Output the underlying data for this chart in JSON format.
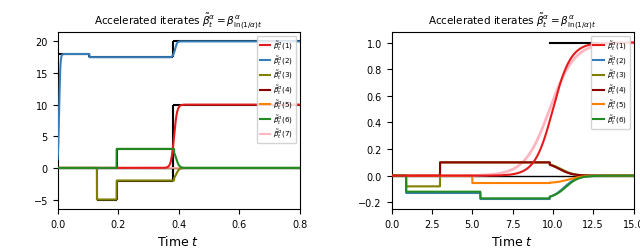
{
  "title": "Accelerated iterates $\\tilde{\\beta}^\\alpha_t = \\beta^\\alpha_{\\ln(1/\\alpha)t}$",
  "xlabel": "Time $t$",
  "left": {
    "xlim": [
      0.0,
      0.8
    ],
    "ylim": [
      -6.5,
      21.5
    ],
    "yticks": [
      -5,
      0,
      5,
      10,
      15,
      20
    ],
    "xticks": [
      0.0,
      0.2,
      0.4,
      0.6,
      0.8
    ]
  },
  "right": {
    "xlim": [
      0.0,
      15.0
    ],
    "ylim": [
      -0.25,
      1.08
    ],
    "yticks": [
      -0.2,
      0.0,
      0.2,
      0.4,
      0.6,
      0.8,
      1.0
    ],
    "xticks": [
      0.0,
      2.5,
      5.0,
      7.5,
      10.0,
      12.5,
      15.0
    ]
  },
  "colors": {
    "1": "#e41a1c",
    "2": "#377eb8",
    "3": "#808000",
    "4": "#8b0000",
    "5": "#ff7f00",
    "6": "#228B22",
    "7": "#ffb6c1"
  }
}
